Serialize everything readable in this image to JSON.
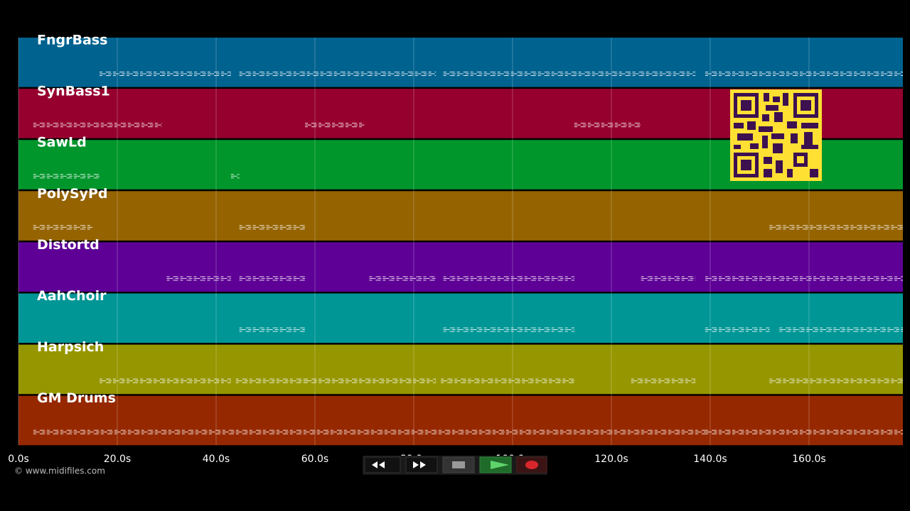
{
  "chart_data": {
    "type": "piano-roll",
    "xlim": [
      0,
      179
    ],
    "xticks": [
      {
        "value": 0,
        "label": "0.0s"
      },
      {
        "value": 20,
        "label": "20.0s"
      },
      {
        "value": 40,
        "label": "40.0s"
      },
      {
        "value": 60,
        "label": "60.0s"
      },
      {
        "value": 80,
        "label": "80.0s"
      },
      {
        "value": 100,
        "label": "100.0s"
      },
      {
        "value": 120,
        "label": "120.0s"
      },
      {
        "value": 140,
        "label": "140.0s"
      },
      {
        "value": 160,
        "label": "160.0s"
      }
    ],
    "grid": true,
    "tracks": [
      {
        "name": "FngrBass",
        "color": "#00628f",
        "spans": [
          [
            16.4,
            43
          ],
          [
            44.7,
            84.5
          ],
          [
            86,
            137
          ],
          [
            139,
            179
          ]
        ]
      },
      {
        "name": "SynBass1",
        "color": "#96002f",
        "spans": [
          [
            3,
            29
          ],
          [
            58,
            70
          ],
          [
            112.5,
            126
          ]
        ]
      },
      {
        "name": "SawLd",
        "color": "#00962b",
        "spans": [
          [
            3,
            16.4
          ],
          [
            43,
            44.7
          ]
        ]
      },
      {
        "name": "PolySyPd",
        "color": "#956300",
        "spans": [
          [
            3,
            15
          ],
          [
            44.7,
            58
          ],
          [
            152,
            179
          ]
        ]
      },
      {
        "name": "Distortd",
        "color": "#5e0096",
        "spans": [
          [
            30,
            43
          ],
          [
            44.7,
            58
          ],
          [
            71,
            84.5
          ],
          [
            86,
            112.5
          ],
          [
            126,
            137
          ],
          [
            139,
            179
          ]
        ]
      },
      {
        "name": "AahChoir",
        "color": "#009696",
        "spans": [
          [
            44.7,
            58
          ],
          [
            86,
            112.5
          ],
          [
            139,
            152
          ],
          [
            154,
            179
          ]
        ]
      },
      {
        "name": "Harpsich",
        "color": "#969600",
        "spans": [
          [
            16.4,
            43
          ],
          [
            44,
            58
          ],
          [
            58,
            84.5
          ],
          [
            85.5,
            112.5
          ],
          [
            124,
            137
          ],
          [
            152,
            179
          ]
        ]
      },
      {
        "name": "GM Drums",
        "color": "#962800",
        "spans": [
          [
            3,
            139
          ],
          [
            139,
            179
          ]
        ]
      }
    ]
  },
  "footer": {
    "copyright": "© www.midifiles.com"
  }
}
